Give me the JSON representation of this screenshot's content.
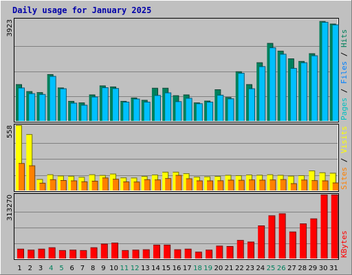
{
  "colors": {
    "background": "#c0c0c0",
    "page": "#ffffff",
    "title": "#0000a8",
    "hits": "#00805c",
    "files": "#00c0ff",
    "pages": "#00d0d0",
    "visits": "#ffff00",
    "sites": "#ff8000",
    "kbytes": "#ff0000",
    "weekday": "#000000",
    "weekend": "#00805c"
  },
  "chart_data": {
    "type": "bar",
    "title": "Daily usage for January 2025",
    "days": [
      "1",
      "2",
      "3",
      "4",
      "5",
      "6",
      "7",
      "8",
      "9",
      "10",
      "11",
      "12",
      "13",
      "14",
      "15",
      "16",
      "17",
      "18",
      "19",
      "20",
      "21",
      "22",
      "23",
      "24",
      "25",
      "26",
      "27",
      "28",
      "29",
      "30",
      "31"
    ],
    "weekend_days": [
      "4",
      "5",
      "11",
      "12",
      "18",
      "19",
      "25",
      "26"
    ],
    "panels": [
      {
        "id": "top",
        "ymax_label": "3923",
        "ymax": 3923,
        "legend": [
          {
            "text": "Pages",
            "color": "#00c0c0"
          },
          {
            "text": " / ",
            "color": "#000000"
          },
          {
            "text": "Files",
            "color": "#0080ff"
          },
          {
            "text": " / ",
            "color": "#000000"
          },
          {
            "text": "Hits",
            "color": "#00805c"
          }
        ],
        "series": [
          {
            "name": "Hits",
            "color": "#00805c",
            "values": [
              1400,
              1130,
              1090,
              1790,
              1270,
              750,
              690,
              1000,
              1350,
              1310,
              750,
              880,
              790,
              1260,
              1260,
              970,
              1000,
              690,
              760,
              1200,
              900,
              1900,
              1400,
              2250,
              3000,
              2700,
              2400,
              2300,
              2600,
              3850,
              3750
            ]
          },
          {
            "name": "Files",
            "color": "#00c0ff",
            "values": [
              1270,
              1050,
              1020,
              1720,
              1240,
              680,
              600,
              920,
              1280,
              1250,
              720,
              840,
              720,
              980,
              1080,
              740,
              870,
              660,
              720,
              990,
              850,
              1840,
              1240,
              2100,
              2830,
              2580,
              2030,
              2250,
              2520,
              3820,
              3720
            ]
          }
        ]
      },
      {
        "id": "mid",
        "ymax_label": "558",
        "ymax": 558,
        "legend": [
          {
            "text": "Sites",
            "color": "#ff8000"
          },
          {
            "text": " / ",
            "color": "#000000"
          },
          {
            "text": "Visits",
            "color": "#ffff00"
          }
        ],
        "series": [
          {
            "name": "Visits",
            "color": "#ffff00",
            "values": [
              558,
              480,
              92,
              133,
              122,
              120,
              111,
              133,
              127,
              139,
              106,
              105,
              118,
              131,
              155,
              155,
              142,
              113,
              115,
              118,
              128,
              125,
              131,
              129,
              133,
              128,
              121,
              125,
              166,
              150,
              146
            ]
          },
          {
            "name": "Sites",
            "color": "#ff8000",
            "values": [
              230,
              210,
              60,
              90,
              83,
              80,
              72,
              77,
              105,
              94,
              71,
              70,
              90,
              88,
              100,
              127,
              98,
              80,
              80,
              81,
              86,
              85,
              88,
              86,
              88,
              91,
              56,
              87,
              82,
              80,
              62
            ]
          }
        ]
      },
      {
        "id": "bot",
        "ymax_label": "313270",
        "ymax": 313270,
        "legend": [
          {
            "text": "KBytes",
            "color": "#ff0000"
          }
        ],
        "series": [
          {
            "name": "KBytes",
            "color": "#ff0000",
            "values": [
              45000,
              40000,
              45000,
              52000,
              38000,
              40000,
              38000,
              52000,
              70000,
              75000,
              38000,
              40000,
              42000,
              65000,
              65000,
              42000,
              45000,
              30000,
              40000,
              60000,
              58000,
              88000,
              80000,
              160000,
              210000,
              220000,
              130000,
              170000,
              195000,
              313270,
              313270
            ]
          }
        ]
      }
    ]
  }
}
